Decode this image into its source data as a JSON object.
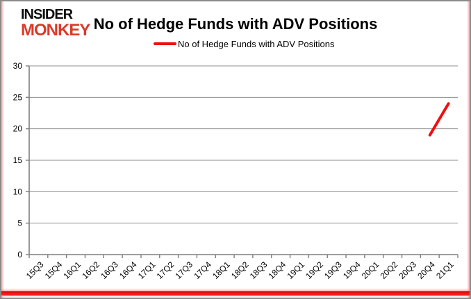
{
  "logo": {
    "line1": "INSIDER",
    "line2": "MONKEY",
    "line1_color": "#0d0d0d",
    "line2_color": "#da3a2b"
  },
  "header": {
    "title": "No of Hedge Funds with ADV Positions"
  },
  "legend": {
    "label": "No of Hedge Funds with ADV Positions",
    "line_color": "#ef0f0f"
  },
  "frame": {
    "border_color": "#8a8a8a",
    "side_glow_color": "#ffa8a8",
    "bottom_bar_color": "#ff1414"
  },
  "chart_data": {
    "type": "line",
    "title": "No of Hedge Funds with ADV Positions",
    "categories": [
      "15Q3",
      "15Q4",
      "16Q1",
      "16Q2",
      "16Q3",
      "16Q4",
      "17Q1",
      "17Q2",
      "17Q3",
      "17Q4",
      "18Q1",
      "18Q2",
      "18Q3",
      "18Q4",
      "19Q1",
      "19Q2",
      "19Q3",
      "19Q4",
      "20Q1",
      "20Q2",
      "20Q3",
      "20Q4",
      "21Q1"
    ],
    "series": [
      {
        "name": "No of Hedge Funds with ADV Positions",
        "color": "#ef0f0f",
        "values": [
          null,
          null,
          null,
          null,
          null,
          null,
          null,
          null,
          null,
          null,
          null,
          null,
          null,
          null,
          null,
          null,
          null,
          null,
          null,
          null,
          null,
          19,
          24
        ]
      }
    ],
    "xlabel": "",
    "ylabel": "",
    "ylim": [
      0,
      30
    ],
    "yticks": [
      0,
      5,
      10,
      15,
      20,
      25,
      30
    ],
    "grid": true,
    "legend_position": "top",
    "gridline_color": "#8c8c8c",
    "axis_color": "#7f7f7f",
    "tick_label_color": "#000000"
  }
}
